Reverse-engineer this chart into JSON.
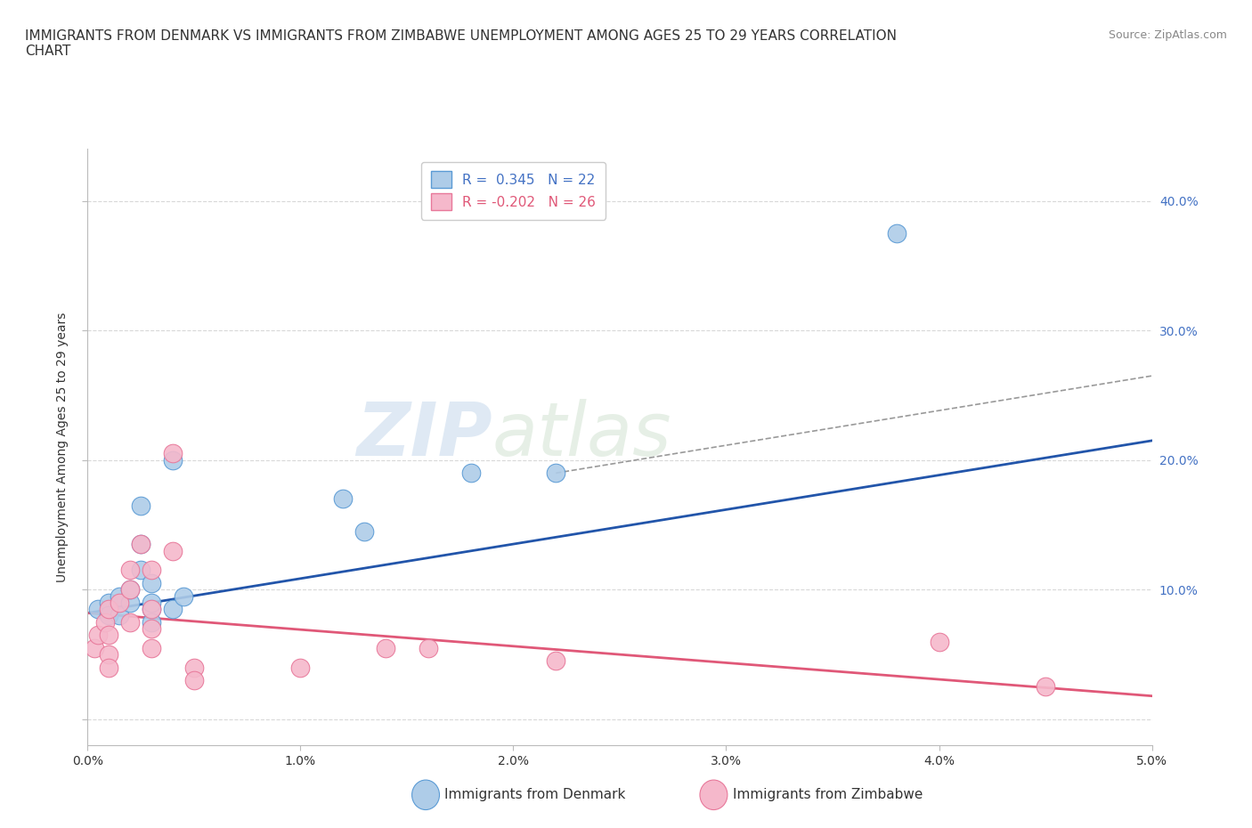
{
  "title": "IMMIGRANTS FROM DENMARK VS IMMIGRANTS FROM ZIMBABWE UNEMPLOYMENT AMONG AGES 25 TO 29 YEARS CORRELATION\nCHART",
  "source": "Source: ZipAtlas.com",
  "ylabel": "Unemployment Among Ages 25 to 29 years",
  "xlim": [
    0.0,
    0.05
  ],
  "ylim": [
    -0.02,
    0.44
  ],
  "xticks": [
    0.0,
    0.01,
    0.02,
    0.03,
    0.04,
    0.05
  ],
  "yticks": [
    0.0,
    0.1,
    0.2,
    0.3,
    0.4
  ],
  "ytick_labels_right": [
    "",
    "10.0%",
    "20.0%",
    "30.0%",
    "40.0%"
  ],
  "xtick_labels": [
    "0.0%",
    "1.0%",
    "2.0%",
    "3.0%",
    "4.0%",
    "5.0%"
  ],
  "denmark_color": "#aecce8",
  "zimbabwe_color": "#f5b8cb",
  "denmark_edge": "#5b9bd5",
  "zimbabwe_edge": "#e8789a",
  "trend_denmark_color": "#2255aa",
  "trend_zimbabwe_color": "#e05878",
  "trend_gray_color": "#999999",
  "legend_denmark": "R =  0.345   N = 22",
  "legend_zimbabwe": "R = -0.202   N = 26",
  "watermark_zip": "ZIP",
  "watermark_atlas": "atlas",
  "denmark_x": [
    0.0005,
    0.001,
    0.001,
    0.0015,
    0.0015,
    0.002,
    0.002,
    0.0025,
    0.0025,
    0.0025,
    0.003,
    0.003,
    0.003,
    0.003,
    0.004,
    0.004,
    0.0045,
    0.012,
    0.013,
    0.018,
    0.022,
    0.038
  ],
  "denmark_y": [
    0.085,
    0.09,
    0.08,
    0.08,
    0.095,
    0.09,
    0.1,
    0.115,
    0.135,
    0.165,
    0.085,
    0.09,
    0.105,
    0.075,
    0.2,
    0.085,
    0.095,
    0.17,
    0.145,
    0.19,
    0.19,
    0.375
  ],
  "zimbabwe_x": [
    0.0003,
    0.0005,
    0.0008,
    0.001,
    0.001,
    0.001,
    0.001,
    0.0015,
    0.002,
    0.002,
    0.002,
    0.0025,
    0.003,
    0.003,
    0.003,
    0.003,
    0.004,
    0.004,
    0.005,
    0.005,
    0.01,
    0.014,
    0.016,
    0.022,
    0.04,
    0.045
  ],
  "zimbabwe_y": [
    0.055,
    0.065,
    0.075,
    0.085,
    0.065,
    0.05,
    0.04,
    0.09,
    0.115,
    0.1,
    0.075,
    0.135,
    0.115,
    0.085,
    0.07,
    0.055,
    0.205,
    0.13,
    0.04,
    0.03,
    0.04,
    0.055,
    0.055,
    0.045,
    0.06,
    0.025
  ],
  "denmark_trend_x": [
    0.0,
    0.05
  ],
  "denmark_trend_y": [
    0.082,
    0.215
  ],
  "zimbabwe_trend_x": [
    0.0,
    0.05
  ],
  "zimbabwe_trend_y": [
    0.082,
    0.018
  ],
  "gray_trend_x": [
    0.022,
    0.05
  ],
  "gray_trend_y": [
    0.19,
    0.265
  ],
  "background_color": "#ffffff",
  "grid_color": "#d8d8d8",
  "title_color": "#333333",
  "source_color": "#888888",
  "tick_label_color": "#333333",
  "right_tick_color": "#4472c4",
  "ylabel_color": "#333333"
}
